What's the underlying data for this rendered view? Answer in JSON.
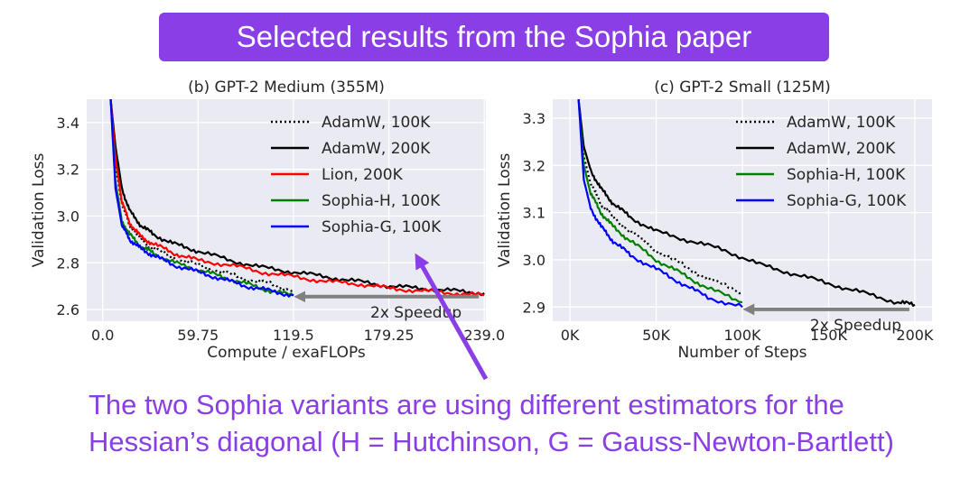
{
  "banner": {
    "title": "Selected results from the Sophia paper"
  },
  "caption": {
    "line1": "The two Sophia variants are using different estimators for the",
    "line2": "Hessian’s diagonal (H = Hutchinson, G = Gauss-Newton-Bartlett)"
  },
  "colors": {
    "banner": "#8a3ee6",
    "caption": "#8a3ee6",
    "arrow": "#8a3ee6",
    "plot_bg": "#eaeaf2",
    "adamw": "#000000",
    "lion": "#ff0000",
    "sophia_h": "#008000",
    "sophia_g": "#0000ff",
    "speedup_arrow": "#808080"
  },
  "chart_data": [
    {
      "type": "line",
      "title": "(b) GPT-2 Medium (355M)",
      "xlabel": "Compute / exaFLOPs",
      "ylabel": "Validation Loss",
      "xlim": [
        -10,
        240
      ],
      "ylim": [
        2.55,
        3.5
      ],
      "xticks": [
        0.0,
        59.75,
        119.5,
        179.25,
        239.0
      ],
      "xtick_labels": [
        "0.0",
        "59.75",
        "119.5",
        "179.25",
        "239.0"
      ],
      "yticks": [
        2.6,
        2.8,
        3.0,
        3.2,
        3.4
      ],
      "ytick_labels": [
        "2.6",
        "2.8",
        "3.0",
        "3.2",
        "3.4"
      ],
      "grid": true,
      "legend_position": "top-right",
      "annotation": {
        "text": "2x Speedup",
        "arrow_from": [
          239,
          2.655
        ],
        "arrow_to": [
          119.5,
          2.655
        ]
      },
      "series": [
        {
          "name": "AdamW, 100K",
          "style": "dotted",
          "color": "#000000",
          "x": [
            5,
            8,
            12,
            17,
            24,
            32,
            45,
            60,
            75,
            90,
            105,
            119.5
          ],
          "y": [
            3.5,
            3.22,
            3.05,
            2.96,
            2.9,
            2.86,
            2.82,
            2.79,
            2.76,
            2.73,
            2.71,
            2.68
          ]
        },
        {
          "name": "AdamW, 200K",
          "style": "solid",
          "color": "#000000",
          "x": [
            5,
            8,
            12,
            17,
            24,
            32,
            45,
            60,
            80,
            100,
            120,
            140,
            160,
            180,
            200,
            220,
            239
          ],
          "y": [
            3.5,
            3.3,
            3.12,
            3.02,
            2.96,
            2.92,
            2.88,
            2.85,
            2.81,
            2.78,
            2.76,
            2.74,
            2.72,
            2.7,
            2.69,
            2.68,
            2.67
          ]
        },
        {
          "name": "Lion, 200K",
          "style": "solid",
          "color": "#ff0000",
          "x": [
            5,
            8,
            12,
            17,
            24,
            32,
            45,
            60,
            80,
            100,
            120,
            140,
            160,
            180,
            200,
            220,
            239
          ],
          "y": [
            3.5,
            3.25,
            3.06,
            2.97,
            2.91,
            2.88,
            2.84,
            2.81,
            2.79,
            2.76,
            2.74,
            2.72,
            2.71,
            2.69,
            2.68,
            2.67,
            2.66
          ]
        },
        {
          "name": "Sophia-H, 100K",
          "style": "solid",
          "color": "#008000",
          "x": [
            5,
            8,
            12,
            17,
            24,
            32,
            45,
            60,
            75,
            90,
            105,
            119.5
          ],
          "y": [
            3.5,
            3.15,
            2.98,
            2.92,
            2.87,
            2.84,
            2.8,
            2.77,
            2.74,
            2.71,
            2.68,
            2.66
          ]
        },
        {
          "name": "Sophia-G, 100K",
          "style": "solid",
          "color": "#0000ff",
          "x": [
            5,
            8,
            12,
            17,
            24,
            32,
            45,
            60,
            75,
            90,
            105,
            119.5
          ],
          "y": [
            3.5,
            3.12,
            2.96,
            2.9,
            2.86,
            2.83,
            2.79,
            2.76,
            2.73,
            2.7,
            2.68,
            2.66
          ]
        }
      ]
    },
    {
      "type": "line",
      "title": "(c) GPT-2 Small (125M)",
      "xlabel": "Number of Steps",
      "ylabel": "Validation Loss",
      "xlim": [
        -10000,
        210000
      ],
      "ylim": [
        2.87,
        3.34
      ],
      "xticks": [
        0,
        50000,
        100000,
        150000,
        200000
      ],
      "xtick_labels": [
        "0K",
        "50K",
        "100K",
        "150K",
        "200K"
      ],
      "yticks": [
        2.9,
        3.0,
        3.1,
        3.2,
        3.3
      ],
      "ytick_labels": [
        "2.9",
        "3.0",
        "3.1",
        "3.2",
        "3.3"
      ],
      "grid": true,
      "legend_position": "top-right",
      "annotation": {
        "text": "2x Speedup",
        "arrow_from": [
          200000,
          2.895
        ],
        "arrow_to": [
          100000,
          2.895
        ]
      },
      "series": [
        {
          "name": "AdamW, 100K",
          "style": "dotted",
          "color": "#000000",
          "x": [
            5000,
            8000,
            12000,
            18000,
            25000,
            35000,
            50000,
            65000,
            80000,
            100000
          ],
          "y": [
            3.34,
            3.22,
            3.16,
            3.12,
            3.09,
            3.06,
            3.02,
            2.99,
            2.96,
            2.93
          ]
        },
        {
          "name": "AdamW, 200K",
          "style": "solid",
          "color": "#000000",
          "x": [
            5000,
            8000,
            12000,
            18000,
            25000,
            35000,
            50000,
            70000,
            90000,
            110000,
            130000,
            150000,
            170000,
            190000,
            200000
          ],
          "y": [
            3.34,
            3.24,
            3.19,
            3.15,
            3.12,
            3.09,
            3.06,
            3.04,
            3.02,
            2.99,
            2.97,
            2.95,
            2.93,
            2.91,
            2.905
          ]
        },
        {
          "name": "Sophia-H, 100K",
          "style": "solid",
          "color": "#008000",
          "x": [
            5000,
            8000,
            12000,
            18000,
            25000,
            35000,
            50000,
            65000,
            80000,
            100000
          ],
          "y": [
            3.34,
            3.2,
            3.14,
            3.1,
            3.07,
            3.04,
            3.0,
            2.97,
            2.94,
            2.91
          ]
        },
        {
          "name": "Sophia-G, 100K",
          "style": "solid",
          "color": "#0000ff",
          "x": [
            5000,
            8000,
            12000,
            18000,
            25000,
            35000,
            50000,
            65000,
            80000,
            100000
          ],
          "y": [
            3.34,
            3.17,
            3.11,
            3.07,
            3.04,
            3.01,
            2.98,
            2.95,
            2.92,
            2.9
          ]
        }
      ]
    }
  ]
}
